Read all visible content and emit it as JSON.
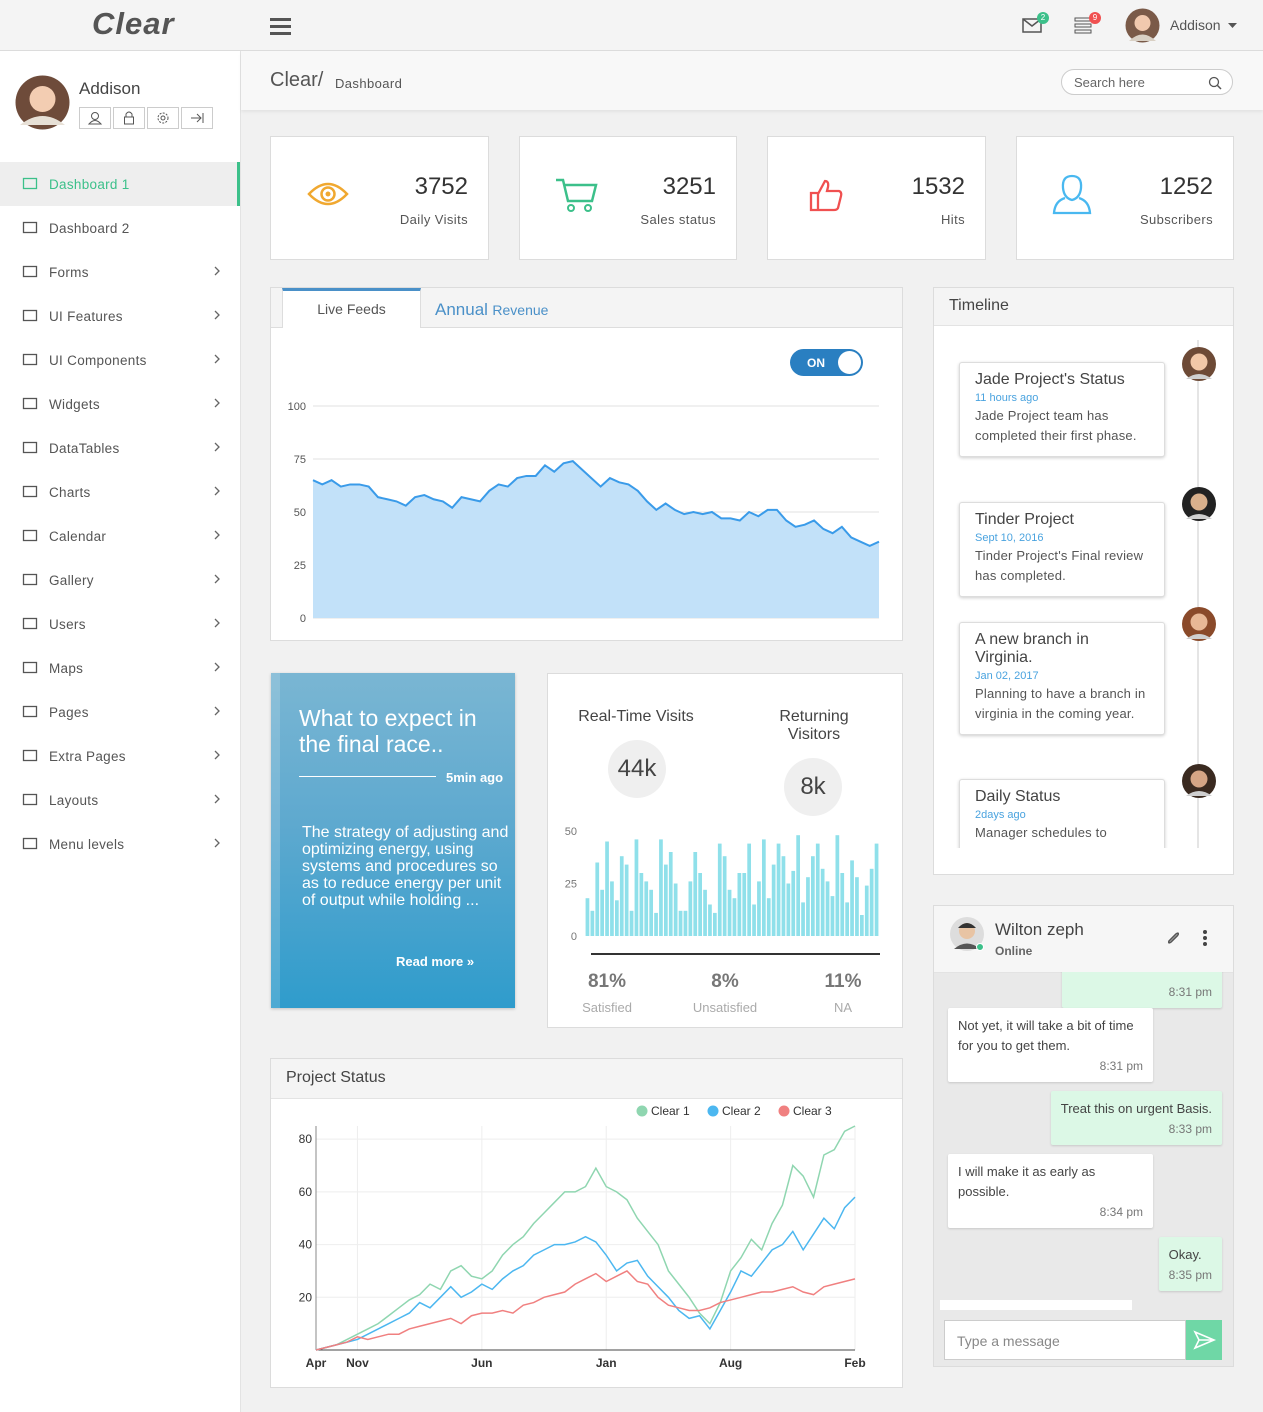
{
  "header": {
    "logo": "Clear",
    "user": "Addison",
    "mail_badge": "2",
    "list_badge": "9"
  },
  "sidebar": {
    "user": "Addison",
    "menu": [
      "Dashboard 1",
      "Dashboard 2",
      "Forms",
      "UI Features",
      "UI Components",
      "Widgets",
      "DataTables",
      "Charts",
      "Calendar",
      "Gallery",
      "Users",
      "Maps",
      "Pages",
      "Extra Pages",
      "Layouts",
      "Menu levels"
    ]
  },
  "breadcrumb": {
    "root": "Clear/",
    "page": "Dashboard",
    "search_placeholder": "Search here"
  },
  "stats": [
    {
      "value": 3752,
      "label": "Daily Visits"
    },
    {
      "value": 3251,
      "label": "Sales status"
    },
    {
      "value": 1532,
      "label": "Hits"
    },
    {
      "value": 1252,
      "label": "Subscribers"
    }
  ],
  "live_feeds": {
    "tab": "Live Feeds",
    "annual": "Annual",
    "revenue": "Revenue",
    "toggle": "ON",
    "chart": {
      "type": "area",
      "color": "#3a9be9",
      "fill": "#c2e1f9",
      "ylim": [
        0,
        100
      ],
      "yticks": [
        0,
        25,
        50,
        75,
        100
      ],
      "grid": true,
      "values": [
        65,
        63,
        65,
        62,
        63,
        63,
        62,
        57,
        56,
        55,
        53,
        57,
        58,
        56,
        55,
        52,
        57,
        56,
        55,
        60,
        63,
        62,
        66,
        67,
        67,
        72,
        69,
        73,
        74,
        70,
        66,
        62,
        66,
        64,
        63,
        60,
        55,
        51,
        54,
        51,
        49,
        50,
        49,
        50,
        47,
        47,
        46,
        50,
        48,
        51,
        51,
        46,
        43,
        44,
        46,
        42,
        40,
        43,
        38,
        36,
        34,
        36
      ]
    }
  },
  "promo": {
    "title": "What to expect in the final race..",
    "time": "5min ago",
    "body": "The strategy of adjusting and optimizing energy, using systems and procedures so as to reduce energy per unit of output while holding ...",
    "link": "Read more"
  },
  "visits": {
    "realtime_label": "Real-Time Visits",
    "realtime_value": "44k",
    "returning_label": "Returning Visitors",
    "returning_value": "8k",
    "chart": {
      "type": "bar",
      "color": "#8fe0ea",
      "ylim": [
        0,
        50
      ],
      "yticks": [
        0,
        25,
        50
      ],
      "grid": false,
      "values": [
        18,
        12,
        35,
        22,
        45,
        26,
        17,
        38,
        34,
        12,
        46,
        30,
        26,
        22,
        11,
        46,
        34,
        40,
        25,
        12,
        12,
        26,
        40,
        30,
        22,
        15,
        11,
        44,
        38,
        22,
        18,
        30,
        30,
        44,
        15,
        26,
        46,
        18,
        34,
        44,
        38,
        25,
        31,
        48,
        16,
        28,
        38,
        44,
        32,
        26,
        19,
        48,
        30,
        16,
        36,
        28,
        10,
        24,
        32,
        44
      ]
    },
    "stats": [
      {
        "value": "81%",
        "label": "Satisfied"
      },
      {
        "value": "8%",
        "label": "Unsatisfied"
      },
      {
        "value": "11%",
        "label": "NA"
      }
    ]
  },
  "timeline": {
    "title": "Timeline",
    "items": [
      {
        "title": "Jade Project's Status",
        "time": "11 hours ago",
        "text": "Jade Project team has completed their first phase."
      },
      {
        "title": "Tinder Project",
        "time": "Sept 10, 2016",
        "text": "Tinder Project's Final review has completed."
      },
      {
        "title": "A new branch in Virginia.",
        "time": "Jan 02, 2017",
        "text": "Planning to have a branch in virginia in the coming year."
      },
      {
        "title": "Daily Status",
        "time": "2days ago",
        "text": "Manager schedules to"
      }
    ]
  },
  "project_status": {
    "title": "Project Status",
    "chart": {
      "type": "line",
      "ylim": [
        0,
        85
      ],
      "yticks": [
        20,
        40,
        60,
        80
      ],
      "grid": true,
      "categories": [
        "Apr",
        null,
        null,
        null,
        "Nov",
        null,
        null,
        null,
        null,
        null,
        null,
        null,
        null,
        null,
        null,
        null,
        "Jun",
        null,
        null,
        null,
        null,
        null,
        null,
        null,
        null,
        null,
        null,
        null,
        "Jan",
        null,
        null,
        null,
        null,
        null,
        null,
        null,
        null,
        null,
        null,
        null,
        "Aug",
        null,
        null,
        null,
        null,
        null,
        null,
        null,
        null,
        null,
        null,
        null,
        "Feb"
      ],
      "series": [
        {
          "name": "Clear 1",
          "color": "#8fd6b0",
          "values": [
            0,
            1,
            2,
            4,
            6,
            8,
            10,
            13,
            16,
            19,
            21,
            25,
            23,
            30,
            32,
            28,
            27,
            30,
            36,
            40,
            43,
            48,
            52,
            56,
            60,
            60,
            62,
            69,
            62,
            60,
            57,
            50,
            45,
            40,
            30,
            25,
            20,
            14,
            10,
            18,
            30,
            35,
            42,
            38,
            48,
            55,
            70,
            66,
            58,
            74,
            76,
            83,
            85
          ]
        },
        {
          "name": "Clear 2",
          "color": "#4cb7f0",
          "values": [
            0,
            1,
            2,
            3,
            4,
            6,
            8,
            10,
            12,
            14,
            18,
            16,
            20,
            24,
            20,
            22,
            25,
            23,
            27,
            30,
            32,
            36,
            38,
            40,
            40,
            41,
            43,
            41,
            36,
            30,
            33,
            34,
            28,
            24,
            20,
            15,
            12,
            13,
            8,
            15,
            22,
            30,
            28,
            33,
            38,
            40,
            45,
            38,
            44,
            50,
            46,
            54,
            58
          ]
        },
        {
          "name": "Clear 3",
          "color": "#f08080",
          "values": [
            0,
            1,
            2,
            3,
            5,
            4,
            5,
            6,
            6,
            8,
            9,
            10,
            11,
            12,
            10,
            13,
            14,
            14,
            15,
            14,
            17,
            18,
            20,
            21,
            22,
            25,
            27,
            29,
            26,
            28,
            30,
            26,
            25,
            20,
            17,
            16,
            15,
            15,
            16,
            18,
            19,
            20,
            21,
            22,
            22,
            23,
            24,
            22,
            21,
            24,
            25,
            26,
            27
          ]
        }
      ]
    }
  },
  "chat": {
    "name": "Wilton zeph",
    "status": "Online",
    "placeholder": "Type a message",
    "messages": [
      {
        "side": "out",
        "time": "8:31 pm"
      },
      {
        "side": "in",
        "text": "Not yet, it will take a bit of time for you to get them.",
        "time": "8:31 pm"
      },
      {
        "side": "out",
        "text": "Treat this on urgent Basis.",
        "time": "8:33 pm"
      },
      {
        "side": "in",
        "text": "I will make it as early as possible.",
        "time": "8:34 pm"
      },
      {
        "side": "out",
        "text": "Okay.",
        "time": "8:35 pm"
      }
    ]
  }
}
